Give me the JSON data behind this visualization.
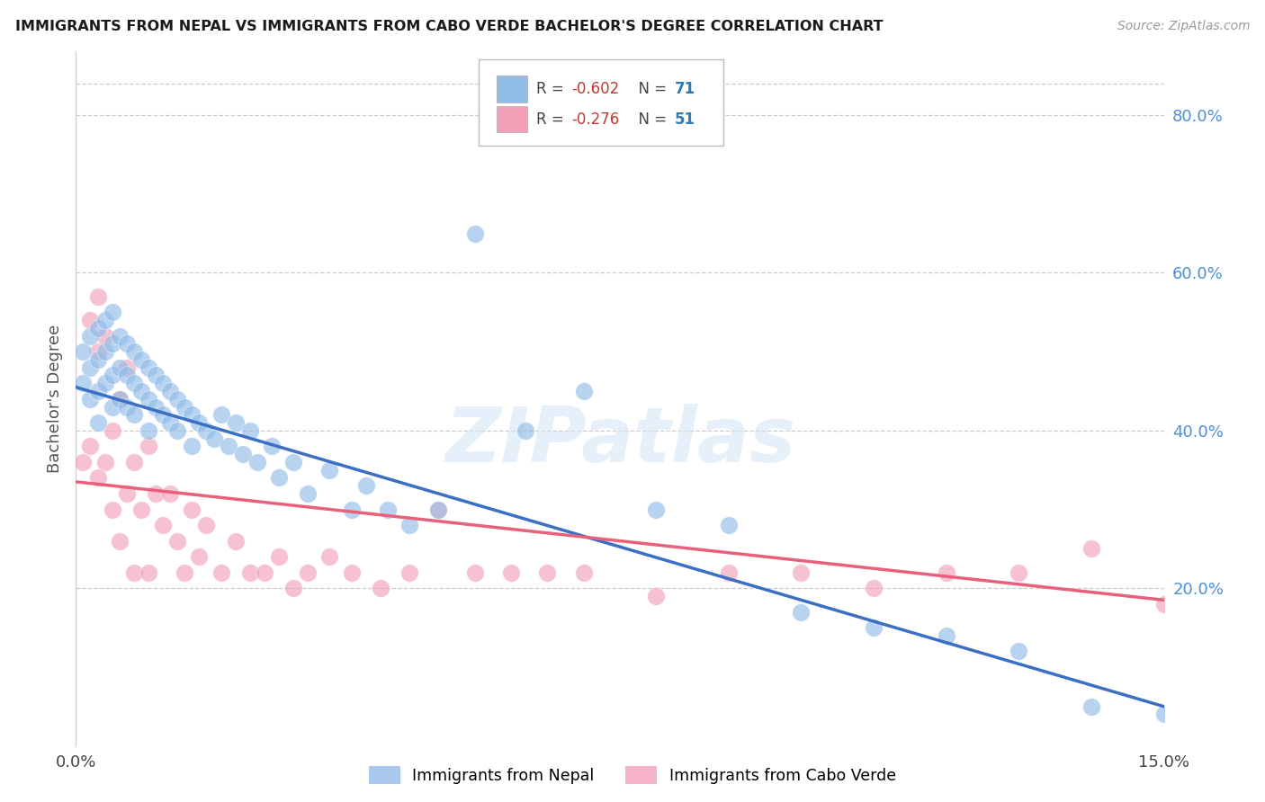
{
  "title": "IMMIGRANTS FROM NEPAL VS IMMIGRANTS FROM CABO VERDE BACHELOR'S DEGREE CORRELATION CHART",
  "source": "Source: ZipAtlas.com",
  "ylabel": "Bachelor's Degree",
  "right_yticks": [
    "80.0%",
    "60.0%",
    "40.0%",
    "20.0%"
  ],
  "right_ytick_vals": [
    0.8,
    0.6,
    0.4,
    0.2
  ],
  "xlim": [
    0.0,
    0.15
  ],
  "ylim": [
    0.0,
    0.88
  ],
  "nepal_color": "#92bce8",
  "cabo_verde_color": "#f2a0b8",
  "nepal_line_color": "#3a6fc4",
  "cabo_verde_line_color": "#e8607a",
  "watermark": "ZIPatlas",
  "nepal_R": -0.602,
  "nepal_N": 71,
  "cabo_verde_R": -0.276,
  "cabo_verde_N": 51,
  "nepal_scatter_x": [
    0.001,
    0.001,
    0.002,
    0.002,
    0.002,
    0.003,
    0.003,
    0.003,
    0.003,
    0.004,
    0.004,
    0.004,
    0.005,
    0.005,
    0.005,
    0.005,
    0.006,
    0.006,
    0.006,
    0.007,
    0.007,
    0.007,
    0.008,
    0.008,
    0.008,
    0.009,
    0.009,
    0.01,
    0.01,
    0.01,
    0.011,
    0.011,
    0.012,
    0.012,
    0.013,
    0.013,
    0.014,
    0.014,
    0.015,
    0.016,
    0.016,
    0.017,
    0.018,
    0.019,
    0.02,
    0.021,
    0.022,
    0.023,
    0.024,
    0.025,
    0.027,
    0.028,
    0.03,
    0.032,
    0.035,
    0.038,
    0.04,
    0.043,
    0.046,
    0.05,
    0.055,
    0.062,
    0.07,
    0.08,
    0.09,
    0.1,
    0.11,
    0.12,
    0.13,
    0.14,
    0.15
  ],
  "nepal_scatter_y": [
    0.5,
    0.46,
    0.52,
    0.48,
    0.44,
    0.53,
    0.49,
    0.45,
    0.41,
    0.54,
    0.5,
    0.46,
    0.55,
    0.51,
    0.47,
    0.43,
    0.52,
    0.48,
    0.44,
    0.51,
    0.47,
    0.43,
    0.5,
    0.46,
    0.42,
    0.49,
    0.45,
    0.48,
    0.44,
    0.4,
    0.47,
    0.43,
    0.46,
    0.42,
    0.45,
    0.41,
    0.44,
    0.4,
    0.43,
    0.42,
    0.38,
    0.41,
    0.4,
    0.39,
    0.42,
    0.38,
    0.41,
    0.37,
    0.4,
    0.36,
    0.38,
    0.34,
    0.36,
    0.32,
    0.35,
    0.3,
    0.33,
    0.3,
    0.28,
    0.3,
    0.65,
    0.4,
    0.45,
    0.3,
    0.28,
    0.17,
    0.15,
    0.14,
    0.12,
    0.05,
    0.04
  ],
  "cabo_verde_scatter_x": [
    0.001,
    0.002,
    0.002,
    0.003,
    0.003,
    0.003,
    0.004,
    0.004,
    0.005,
    0.005,
    0.006,
    0.006,
    0.007,
    0.007,
    0.008,
    0.008,
    0.009,
    0.01,
    0.01,
    0.011,
    0.012,
    0.013,
    0.014,
    0.015,
    0.016,
    0.017,
    0.018,
    0.02,
    0.022,
    0.024,
    0.026,
    0.028,
    0.03,
    0.032,
    0.035,
    0.038,
    0.042,
    0.046,
    0.05,
    0.055,
    0.06,
    0.065,
    0.07,
    0.08,
    0.09,
    0.1,
    0.11,
    0.12,
    0.13,
    0.14,
    0.15
  ],
  "cabo_verde_scatter_y": [
    0.36,
    0.54,
    0.38,
    0.57,
    0.5,
    0.34,
    0.52,
    0.36,
    0.4,
    0.3,
    0.44,
    0.26,
    0.48,
    0.32,
    0.36,
    0.22,
    0.3,
    0.38,
    0.22,
    0.32,
    0.28,
    0.32,
    0.26,
    0.22,
    0.3,
    0.24,
    0.28,
    0.22,
    0.26,
    0.22,
    0.22,
    0.24,
    0.2,
    0.22,
    0.24,
    0.22,
    0.2,
    0.22,
    0.3,
    0.22,
    0.22,
    0.22,
    0.22,
    0.19,
    0.22,
    0.22,
    0.2,
    0.22,
    0.22,
    0.25,
    0.18
  ]
}
